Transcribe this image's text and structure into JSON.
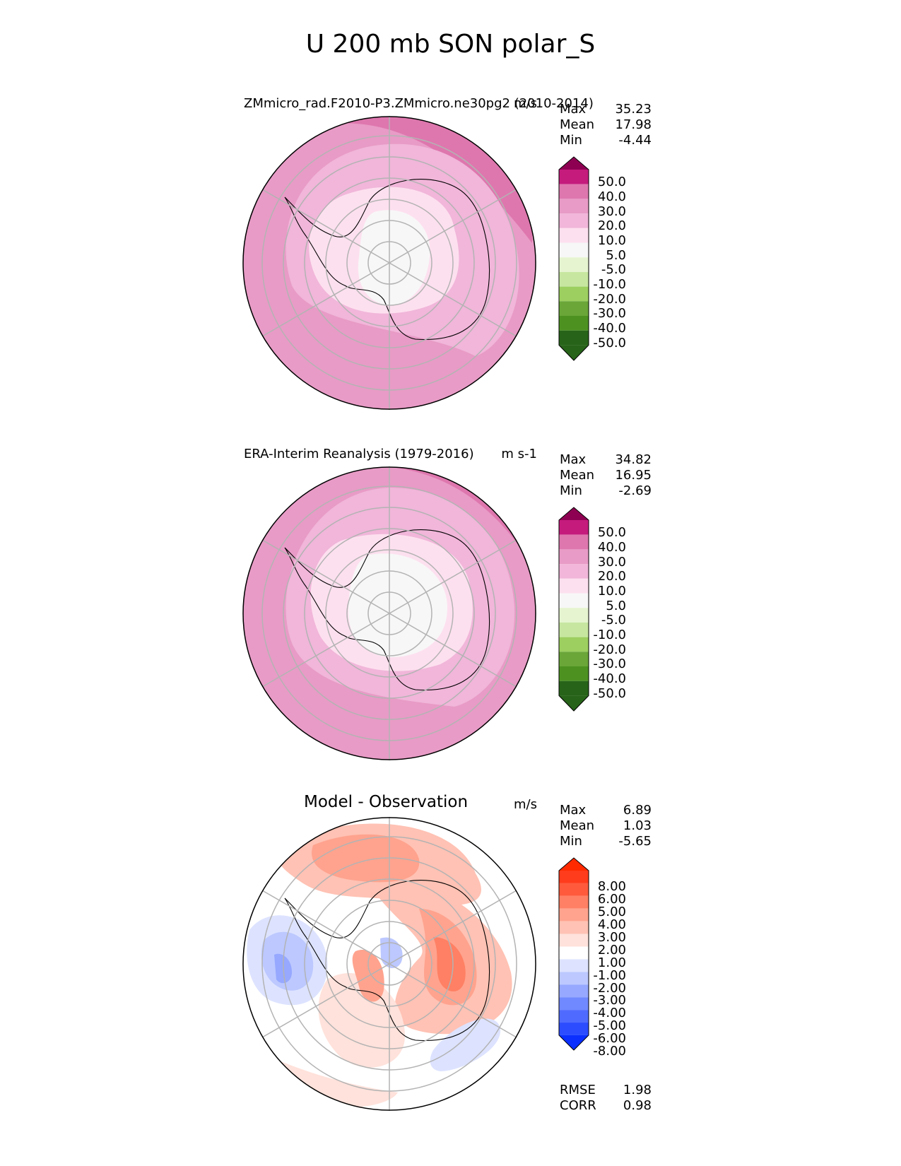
{
  "title": "U 200 mb SON polar_S",
  "panels": [
    {
      "id": "model",
      "title": "ZMmicro_rad.F2010-P3.ZMmicro.ne30pg2 (2010-2014)",
      "units": "m/s",
      "stats": [
        {
          "label": "Max",
          "value": "35.23"
        },
        {
          "label": "Mean",
          "value": "17.98"
        },
        {
          "label": "Min",
          "value": "-4.44"
        }
      ],
      "colorbar": {
        "labels": [
          "50.0",
          "40.0",
          "30.0",
          "20.0",
          "10.0",
          "5.0",
          "-5.0",
          "-10.0",
          "-20.0",
          "-30.0",
          "-40.0",
          "-50.0"
        ],
        "colors": [
          "#8e0152",
          "#c51b7d",
          "#de77ae",
          "#e89bc6",
          "#f1b6da",
          "#fde0ef",
          "#f7f7f7",
          "#e6f5d0",
          "#c7e7a0",
          "#9ccf5f",
          "#6aa638",
          "#4d9221",
          "#276419"
        ]
      }
    },
    {
      "id": "obs",
      "title": "ERA-Interim Reanalysis (1979-2016)",
      "units": "m s-1",
      "stats": [
        {
          "label": "Max",
          "value": "34.82"
        },
        {
          "label": "Mean",
          "value": "16.95"
        },
        {
          "label": "Min",
          "value": "-2.69"
        }
      ],
      "colorbar": {
        "labels": [
          "50.0",
          "40.0",
          "30.0",
          "20.0",
          "10.0",
          "5.0",
          "-5.0",
          "-10.0",
          "-20.0",
          "-30.0",
          "-40.0",
          "-50.0"
        ],
        "colors": [
          "#8e0152",
          "#c51b7d",
          "#de77ae",
          "#e89bc6",
          "#f1b6da",
          "#fde0ef",
          "#f7f7f7",
          "#e6f5d0",
          "#c7e7a0",
          "#9ccf5f",
          "#6aa638",
          "#4d9221",
          "#276419"
        ]
      }
    },
    {
      "id": "diff",
      "title": "Model - Observation",
      "units": "m/s",
      "stats": [
        {
          "label": "Max",
          "value": "6.89"
        },
        {
          "label": "Mean",
          "value": "1.03"
        },
        {
          "label": "Min",
          "value": "-5.65"
        }
      ],
      "metrics": [
        {
          "label": "RMSE",
          "value": "1.98"
        },
        {
          "label": "CORR",
          "value": "0.98"
        }
      ],
      "colorbar": {
        "labels": [
          "8.00",
          "6.00",
          "5.00",
          "4.00",
          "3.00",
          "2.00",
          "1.00",
          "-1.00",
          "-2.00",
          "-3.00",
          "-4.00",
          "-5.00",
          "-6.00",
          "-8.00"
        ],
        "colors": [
          "#ff2a00",
          "#ff3c1c",
          "#ff5a3c",
          "#ff8064",
          "#ffa38e",
          "#ffc2b4",
          "#ffe2db",
          "#ffffff",
          "#dde3ff",
          "#bcc8ff",
          "#96a8ff",
          "#7089ff",
          "#4f6bff",
          "#2c4dff",
          "#0a2fff"
        ]
      }
    }
  ]
}
